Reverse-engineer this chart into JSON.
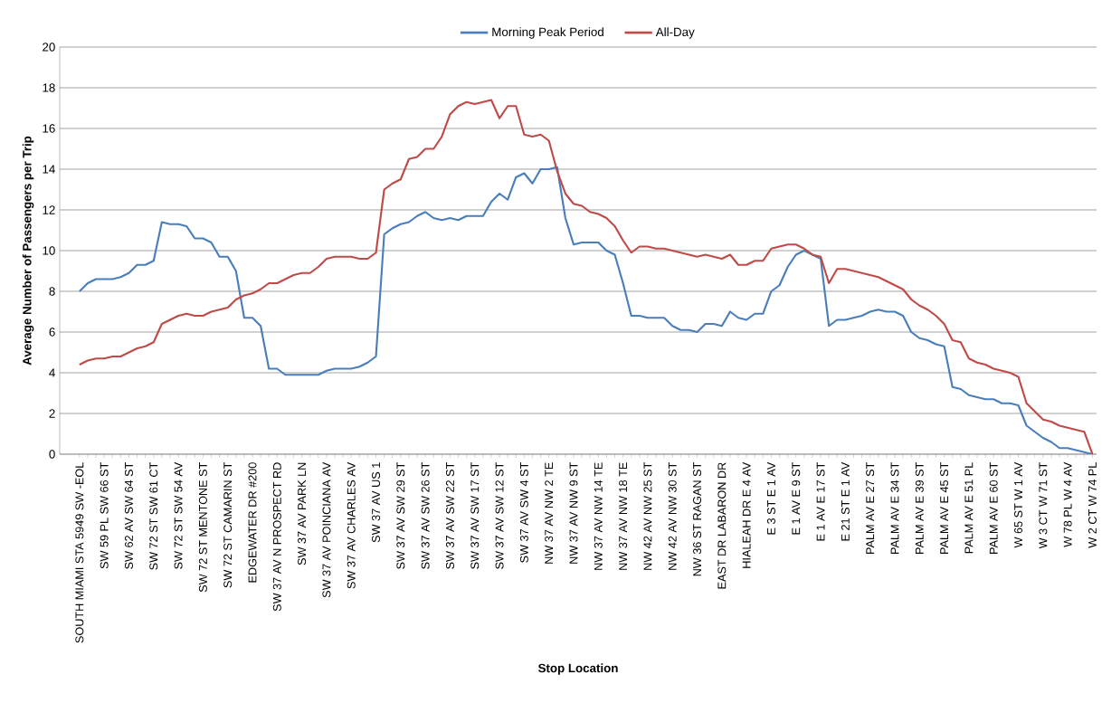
{
  "chart_data": {
    "type": "line",
    "xlabel": "Stop Location",
    "ylabel": "Average Number of Passengers per Trip",
    "categories": [
      "SOUTH MIAMI STA 5949 SW  -EOL",
      null,
      null,
      "SW 59 PL SW 66 ST",
      null,
      null,
      "SW 62 AV SW 64 ST",
      null,
      null,
      "SW 72 ST SW 61 CT",
      null,
      null,
      "SW 72 ST SW 54 AV",
      null,
      null,
      "SW 72 ST MENTONE ST",
      null,
      null,
      "SW 72 ST CAMARIN ST",
      null,
      null,
      "EDGEWATER DR #200",
      null,
      null,
      "SW 37 AV N PROSPECT RD",
      null,
      null,
      "SW 37 AV PARK LN",
      null,
      null,
      "SW 37 AV POINCIANA AV",
      null,
      null,
      "SW 37 AV CHARLES AV",
      null,
      null,
      "SW 37 AV US 1",
      null,
      null,
      "SW 37 AV SW 29 ST",
      null,
      null,
      "SW 37 AV SW 26 ST",
      null,
      null,
      "SW 37 AV SW 22 ST",
      null,
      null,
      "SW 37 AV SW 17 ST",
      null,
      null,
      "SW 37 AV SW 12 ST",
      null,
      null,
      "SW 37 AV SW 4 ST",
      null,
      null,
      "NW 37 AV NW 2 TE",
      null,
      null,
      "NW 37 AV NW 9 ST",
      null,
      null,
      "NW 37 AV NW 14 TE",
      null,
      null,
      "NW 37 AV NW 18 TE",
      null,
      null,
      "NW 42 AV NW 25 ST",
      null,
      null,
      "NW 42 AV NW 30 ST",
      null,
      null,
      "NW 36 ST RAGAN ST",
      null,
      null,
      "EAST DR LABARON DR",
      null,
      null,
      "HIALEAH DR E 4 AV",
      null,
      null,
      "E 3 ST E 1 AV",
      null,
      null,
      "E 1 AV E 9 ST",
      null,
      null,
      "E 1 AV E 17 ST",
      null,
      null,
      "E 21 ST E 1 AV",
      null,
      null,
      "PALM AV E 27 ST",
      null,
      null,
      "PALM AV E 34 ST",
      null,
      null,
      "PALM AV E 39 ST",
      null,
      null,
      "PALM AV E 45 ST",
      null,
      null,
      "PALM AV E 51 PL",
      null,
      null,
      "PALM AV E 60 ST",
      null,
      null,
      "W 65 ST W 1 AV",
      null,
      null,
      "W 3 CT W 71 ST",
      null,
      null,
      "W 78 PL W 4 AV",
      null,
      null,
      "W 2 CT W 74 PL"
    ],
    "series": [
      {
        "name": "Morning Peak Period",
        "color": "#4a7ebb",
        "values": [
          8.0,
          8.4,
          8.6,
          8.6,
          8.6,
          8.7,
          8.9,
          9.3,
          9.3,
          9.5,
          11.4,
          11.3,
          11.3,
          11.2,
          10.6,
          10.6,
          10.4,
          9.7,
          9.7,
          9.0,
          6.7,
          6.7,
          6.3,
          4.2,
          4.2,
          3.9,
          3.9,
          3.9,
          3.9,
          3.9,
          4.1,
          4.2,
          4.2,
          4.2,
          4.3,
          4.5,
          4.8,
          10.8,
          11.1,
          11.3,
          11.4,
          11.7,
          11.9,
          11.6,
          11.5,
          11.6,
          11.5,
          11.7,
          11.7,
          11.7,
          12.4,
          12.8,
          12.5,
          13.6,
          13.8,
          13.3,
          14.0,
          14.0,
          14.1,
          11.6,
          10.3,
          10.4,
          10.4,
          10.4,
          10.0,
          9.8,
          8.4,
          6.8,
          6.8,
          6.7,
          6.7,
          6.7,
          6.3,
          6.1,
          6.1,
          6.0,
          6.4,
          6.4,
          6.3,
          7.0,
          6.7,
          6.6,
          6.9,
          6.9,
          8.0,
          8.3,
          9.2,
          9.8,
          10.0,
          9.8,
          9.6,
          6.3,
          6.6,
          6.6,
          6.7,
          6.8,
          7.0,
          7.1,
          7.0,
          7.0,
          6.8,
          6.0,
          5.7,
          5.6,
          5.4,
          5.3,
          3.3,
          3.2,
          2.9,
          2.8,
          2.7,
          2.7,
          2.5,
          2.5,
          2.4,
          1.4,
          1.1,
          0.8,
          0.6,
          0.3,
          0.3,
          0.2,
          0.1,
          0.0
        ]
      },
      {
        "name": "All-Day",
        "color": "#be4b48",
        "values": [
          4.4,
          4.6,
          4.7,
          4.7,
          4.8,
          4.8,
          5.0,
          5.2,
          5.3,
          5.5,
          6.4,
          6.6,
          6.8,
          6.9,
          6.8,
          6.8,
          7.0,
          7.1,
          7.2,
          7.6,
          7.8,
          7.9,
          8.1,
          8.4,
          8.4,
          8.6,
          8.8,
          8.9,
          8.9,
          9.2,
          9.6,
          9.7,
          9.7,
          9.7,
          9.6,
          9.6,
          9.9,
          13.0,
          13.3,
          13.5,
          14.5,
          14.6,
          15.0,
          15.0,
          15.6,
          16.7,
          17.1,
          17.3,
          17.2,
          17.3,
          17.4,
          16.5,
          17.1,
          17.1,
          15.7,
          15.6,
          15.7,
          15.4,
          13.9,
          12.8,
          12.3,
          12.2,
          11.9,
          11.8,
          11.6,
          11.2,
          10.5,
          9.9,
          10.2,
          10.2,
          10.1,
          10.1,
          10.0,
          9.9,
          9.8,
          9.7,
          9.8,
          9.7,
          9.6,
          9.8,
          9.3,
          9.3,
          9.5,
          9.5,
          10.1,
          10.2,
          10.3,
          10.3,
          10.1,
          9.8,
          9.7,
          8.4,
          9.1,
          9.1,
          9.0,
          8.9,
          8.8,
          8.7,
          8.5,
          8.3,
          8.1,
          7.6,
          7.3,
          7.1,
          6.8,
          6.4,
          5.6,
          5.5,
          4.7,
          4.5,
          4.4,
          4.2,
          4.1,
          4.0,
          3.8,
          2.5,
          2.1,
          1.7,
          1.6,
          1.4,
          1.3,
          1.2,
          1.1,
          0.0
        ]
      }
    ],
    "ylim": [
      0,
      20
    ],
    "yticks": [
      0,
      2,
      4,
      6,
      8,
      10,
      12,
      14,
      16,
      18,
      20
    ],
    "grid": "y",
    "legend": "top",
    "marker": "none",
    "line_style": "solid"
  }
}
